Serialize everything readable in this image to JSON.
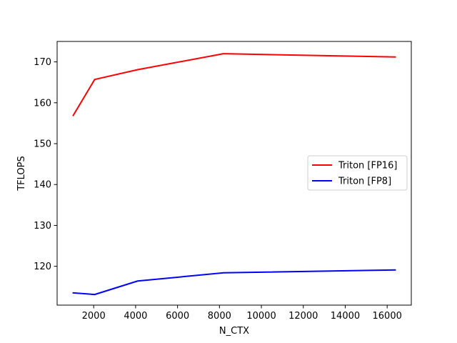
{
  "chart_data": {
    "type": "line",
    "title": "",
    "xlabel": "N_CTX",
    "ylabel": "TFLOPS",
    "xlim": [
      256,
      17152
    ],
    "ylim": [
      110.5,
      175
    ],
    "x_ticks": [
      2000,
      4000,
      6000,
      8000,
      10000,
      12000,
      14000,
      16000
    ],
    "x_tick_labels": [
      "2000",
      "4000",
      "6000",
      "8000",
      "10000",
      "12000",
      "14000",
      "16000"
    ],
    "y_ticks": [
      120,
      130,
      140,
      150,
      160,
      170
    ],
    "y_tick_labels": [
      "120",
      "130",
      "140",
      "150",
      "160",
      "170"
    ],
    "grid": false,
    "legend_position": "center-right",
    "series": [
      {
        "name": "Triton [FP16]",
        "color": "#ff0000",
        "x": [
          1024,
          2048,
          4096,
          8192,
          16384
        ],
        "y": [
          156.9,
          165.7,
          168.1,
          172.0,
          171.2
        ]
      },
      {
        "name": "Triton [FP8]",
        "color": "#0000ff",
        "x": [
          1024,
          2048,
          4096,
          8192,
          16384
        ],
        "y": [
          113.5,
          113.1,
          116.4,
          118.4,
          119.1
        ]
      }
    ]
  }
}
